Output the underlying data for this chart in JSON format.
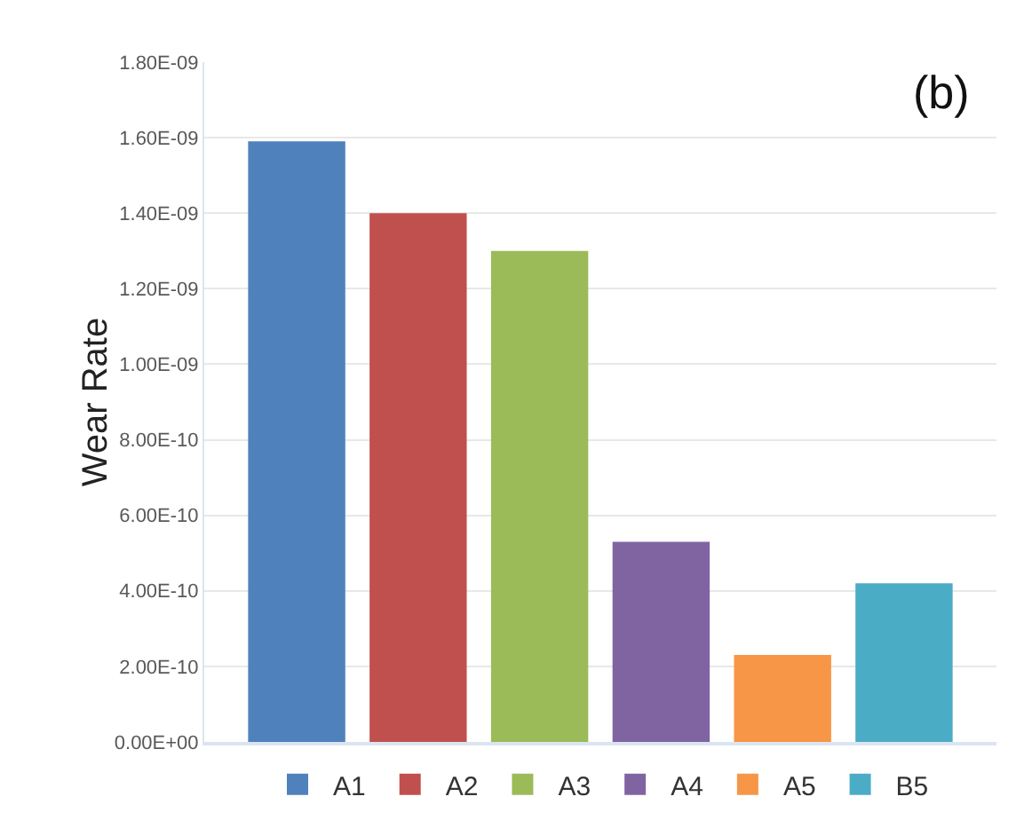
{
  "chart_data": {
    "type": "bar",
    "ylabel": "Wear Rate",
    "annotations": [
      "(b)"
    ],
    "categories": [
      null
    ],
    "series": [
      {
        "name": "A1",
        "color": "#4f81bd",
        "values": [
          1.59e-09
        ]
      },
      {
        "name": "A2",
        "color": "#c0504d",
        "values": [
          1.4e-09
        ]
      },
      {
        "name": "A3",
        "color": "#9bbb59",
        "values": [
          1.3e-09
        ]
      },
      {
        "name": "A4",
        "color": "#8064a2",
        "values": [
          5.3e-10
        ]
      },
      {
        "name": "A5",
        "color": "#f79646",
        "values": [
          2.3e-10
        ]
      },
      {
        "name": "B5",
        "color": "#4bacc6",
        "values": [
          4.2e-10
        ]
      }
    ],
    "ylim": [
      0,
      1.8e-09
    ],
    "yticks": [
      {
        "value": 0,
        "label": "0.00E+00"
      },
      {
        "value": 2e-10,
        "label": "2.00E-10"
      },
      {
        "value": 4e-10,
        "label": "4.00E-10"
      },
      {
        "value": 6e-10,
        "label": "6.00E-10"
      },
      {
        "value": 8e-10,
        "label": "8.00E-10"
      },
      {
        "value": 1e-09,
        "label": "1.00E-09"
      },
      {
        "value": 1.2e-09,
        "label": "1.20E-09"
      },
      {
        "value": 1.4e-09,
        "label": "1.40E-09"
      },
      {
        "value": 1.6e-09,
        "label": "1.60E-09"
      },
      {
        "value": 1.8e-09,
        "label": "1.80E-09"
      }
    ],
    "grid": "y",
    "legend": "bottom"
  }
}
